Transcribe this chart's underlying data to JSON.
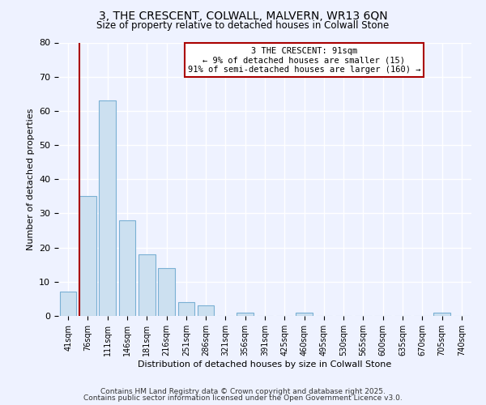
{
  "title1": "3, THE CRESCENT, COLWALL, MALVERN, WR13 6QN",
  "title2": "Size of property relative to detached houses in Colwall Stone",
  "xlabel": "Distribution of detached houses by size in Colwall Stone",
  "ylabel": "Number of detached properties",
  "bar_labels": [
    "41sqm",
    "76sqm",
    "111sqm",
    "146sqm",
    "181sqm",
    "216sqm",
    "251sqm",
    "286sqm",
    "321sqm",
    "356sqm",
    "391sqm",
    "425sqm",
    "460sqm",
    "495sqm",
    "530sqm",
    "565sqm",
    "600sqm",
    "635sqm",
    "670sqm",
    "705sqm",
    "740sqm"
  ],
  "bar_values": [
    7,
    35,
    63,
    28,
    18,
    14,
    4,
    3,
    0,
    1,
    0,
    0,
    1,
    0,
    0,
    0,
    0,
    0,
    0,
    1,
    0
  ],
  "bar_color": "#cce0f0",
  "bar_edgecolor": "#7ab0d4",
  "background_color": "#eef2ff",
  "grid_color": "#ffffff",
  "vline_x": 0.575,
  "vline_color": "#aa0000",
  "annotation_title": "3 THE CRESCENT: 91sqm",
  "annotation_line1": "← 9% of detached houses are smaller (15)",
  "annotation_line2": "91% of semi-detached houses are larger (160) →",
  "annotation_box_color": "#ffffff",
  "annotation_border_color": "#aa0000",
  "ylim": [
    0,
    80
  ],
  "yticks": [
    0,
    10,
    20,
    30,
    40,
    50,
    60,
    70,
    80
  ],
  "footer1": "Contains HM Land Registry data © Crown copyright and database right 2025.",
  "footer2": "Contains public sector information licensed under the Open Government Licence v3.0."
}
